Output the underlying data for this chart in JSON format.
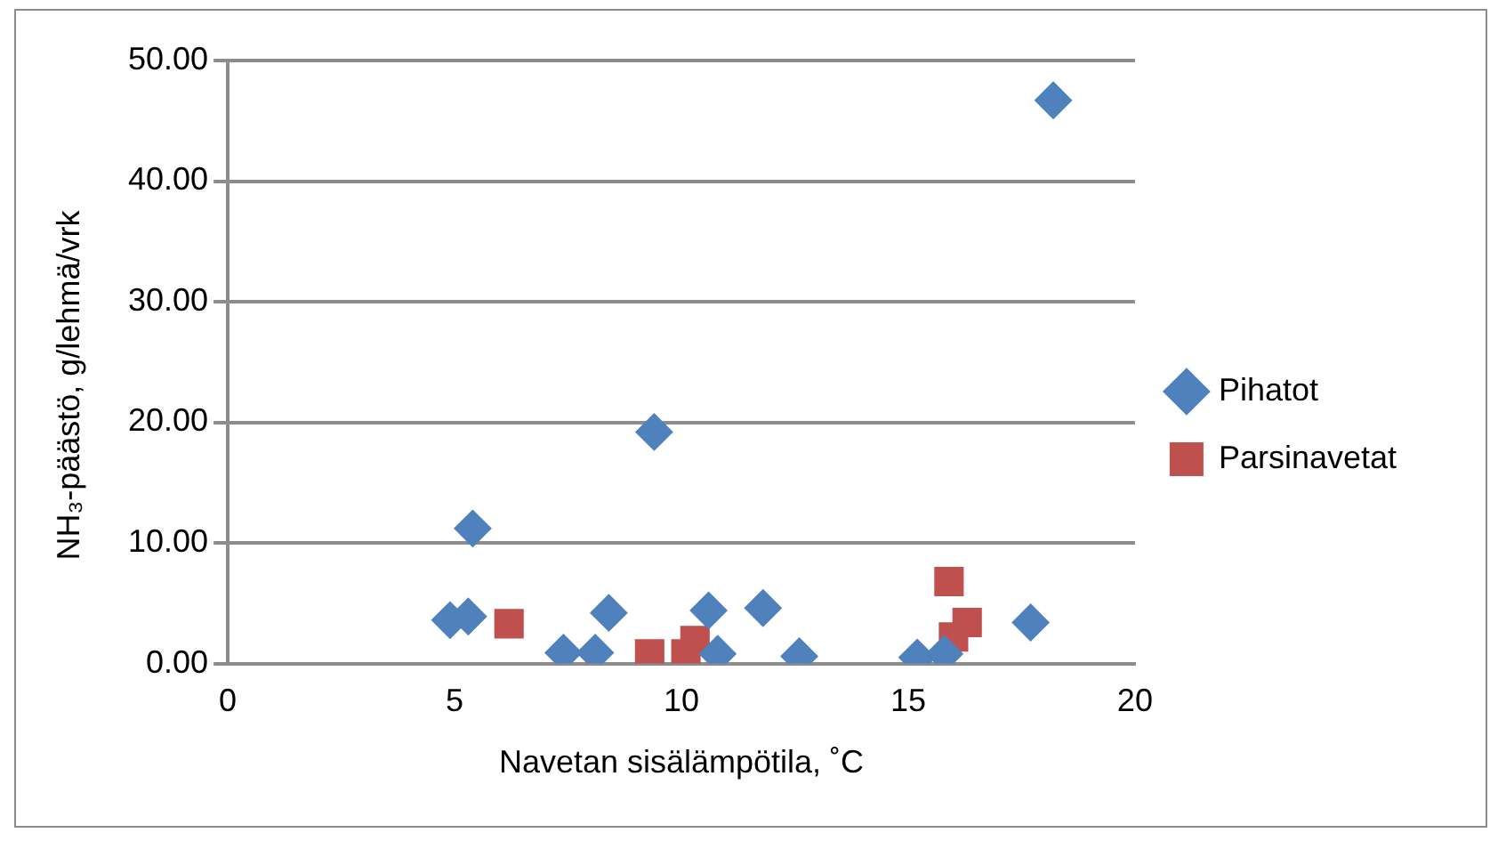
{
  "chart_data": {
    "type": "scatter",
    "xlabel": "Navetan sisälämpötila, ˚C",
    "ylabel": "NH₃-päästö, g/lehmä/vrk",
    "xlim": [
      0,
      20
    ],
    "xticks": [
      0,
      5,
      10,
      15,
      20
    ],
    "ylim": [
      0,
      50
    ],
    "yticks": [
      {
        "value": 0,
        "label": "0.00"
      },
      {
        "value": 10,
        "label": "10.00"
      },
      {
        "value": 20,
        "label": "20.00"
      },
      {
        "value": 30,
        "label": "30.00"
      },
      {
        "value": 40,
        "label": "40.00"
      },
      {
        "value": 50,
        "label": "50.00"
      }
    ],
    "grid": "y",
    "legend": "right",
    "series": [
      {
        "name": "Pihatot",
        "color": "#4f81bd",
        "marker": "diamond",
        "x": [
          4.9,
          5.3,
          5.4,
          7.4,
          8.1,
          8.4,
          9.4,
          10.6,
          10.8,
          11.8,
          12.6,
          15.2,
          15.8,
          17.7,
          18.2
        ],
        "values": [
          3.6,
          3.9,
          11.2,
          0.9,
          0.9,
          4.2,
          19.2,
          4.4,
          0.8,
          4.6,
          0.6,
          0.5,
          0.8,
          3.4,
          46.7
        ]
      },
      {
        "name": "Parsinavetat",
        "color": "#c0504d",
        "marker": "square",
        "x": [
          6.2,
          9.3,
          10.1,
          10.3,
          15.9,
          16.0,
          16.3
        ],
        "values": [
          3.3,
          0.8,
          0.8,
          1.9,
          6.8,
          2.2,
          3.4
        ]
      }
    ]
  }
}
